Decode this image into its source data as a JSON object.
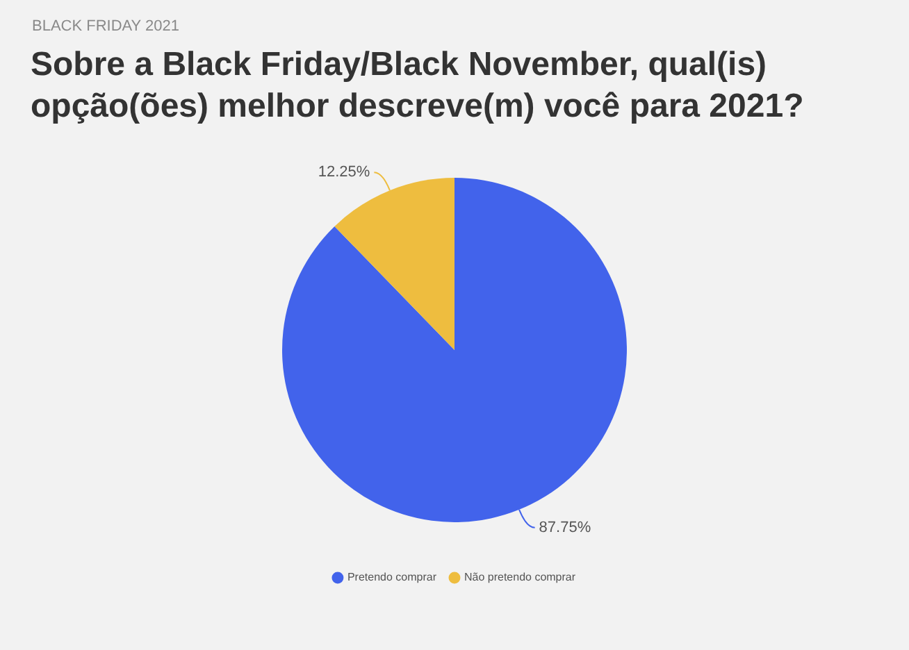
{
  "chart_data": {
    "type": "pie",
    "subtitle": "BLACK FRIDAY 2021",
    "title": "Sobre a Black Friday/Black November, qual(is) opção(ões) melhor descreve(m) você para 2021?",
    "categories": [
      "Pretendo comprar",
      "Não pretendo comprar"
    ],
    "values": [
      87.75,
      12.25
    ],
    "colors": [
      "#4263eb",
      "#eebd3f"
    ],
    "value_labels": [
      "87.75%",
      "12.25%"
    ],
    "legend": "bottom"
  }
}
